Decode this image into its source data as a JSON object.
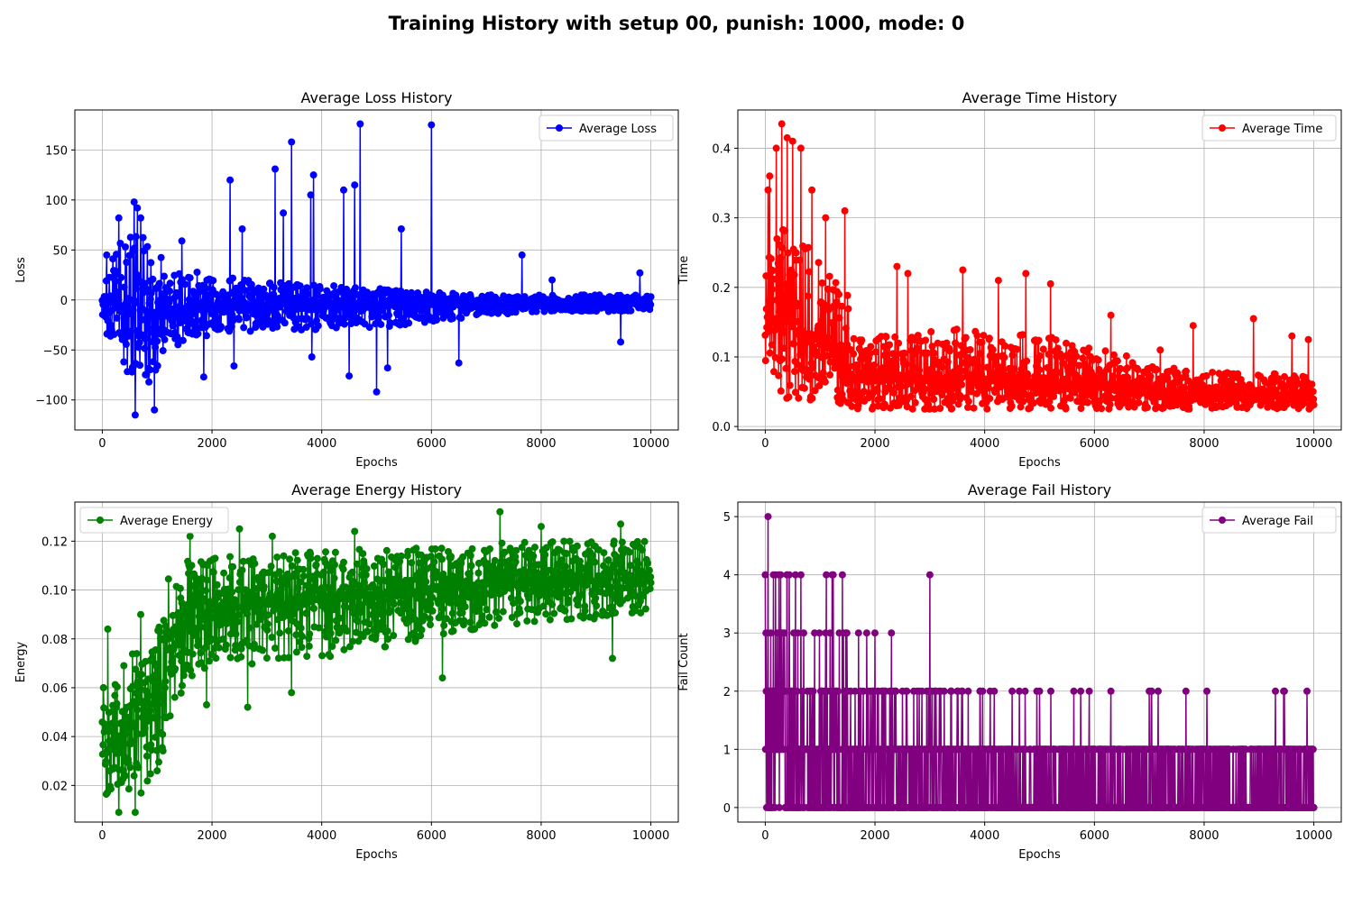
{
  "figure": {
    "suptitle": "Training History with setup 00, punish: 1000, mode: 0"
  },
  "chart_data": [
    {
      "type": "line",
      "title": "Average Loss History",
      "xlabel": "Epochs",
      "ylabel": "Loss",
      "xlim": [
        -500,
        10500
      ],
      "ylim": [
        -130,
        190
      ],
      "xticks": [
        0,
        2000,
        4000,
        6000,
        8000,
        10000
      ],
      "yticks": [
        -100,
        -50,
        0,
        50,
        100,
        150
      ],
      "ytick_labels": [
        "−100",
        "−50",
        "0",
        "50",
        "100",
        "150"
      ],
      "grid": true,
      "legend": "upper right",
      "series": [
        {
          "name": "Average Loss",
          "color": "#0000ff",
          "marker": "circle",
          "style": "noisy",
          "description": "dense noisy series, 10000 epochs, envelope narrows over training",
          "envelope": {
            "x": [
              0,
              300,
              600,
              1000,
              1500,
              2000,
              3000,
              4000,
              5000,
              6000,
              7000,
              8000,
              9000,
              10000
            ],
            "center": [
              0,
              -5,
              -10,
              -10,
              -8,
              -7,
              -6,
              -5,
              -5,
              -4,
              -4,
              -3,
              -3,
              -3
            ],
            "upper": [
              25,
              60,
              75,
              45,
              30,
              25,
              18,
              15,
              12,
              8,
              5,
              5,
              5,
              5
            ],
            "lower": [
              -25,
              -60,
              -85,
              -70,
              -40,
              -35,
              -30,
              -30,
              -28,
              -22,
              -15,
              -12,
              -12,
              -10
            ]
          },
          "peaks": [
            [
              80,
              45
            ],
            [
              300,
              82
            ],
            [
              580,
              98
            ],
            [
              640,
              92
            ],
            [
              700,
              82
            ],
            [
              950,
              53
            ],
            [
              1450,
              59
            ],
            [
              2330,
              120
            ],
            [
              2550,
              71
            ],
            [
              3150,
              131
            ],
            [
              3300,
              87
            ],
            [
              3450,
              158
            ],
            [
              3800,
              105
            ],
            [
              3850,
              125
            ],
            [
              4400,
              110
            ],
            [
              4600,
              115
            ],
            [
              4700,
              176
            ],
            [
              5450,
              71
            ],
            [
              6000,
              175
            ],
            [
              7650,
              45
            ],
            [
              8200,
              20
            ],
            [
              9800,
              27
            ],
            [
              600,
              -115
            ],
            [
              950,
              -110
            ],
            [
              850,
              -82
            ],
            [
              1850,
              -77
            ],
            [
              2400,
              -66
            ],
            [
              3820,
              -57
            ],
            [
              4500,
              -76
            ],
            [
              5000,
              -92
            ],
            [
              5200,
              -68
            ],
            [
              6500,
              -63
            ],
            [
              9450,
              -42
            ]
          ]
        }
      ]
    },
    {
      "type": "line",
      "title": "Average Time History",
      "xlabel": "Epochs",
      "ylabel": "Time",
      "xlim": [
        -500,
        10500
      ],
      "ylim": [
        -0.005,
        0.455
      ],
      "xticks": [
        0,
        2000,
        4000,
        6000,
        8000,
        10000
      ],
      "yticks": [
        0.0,
        0.1,
        0.2,
        0.3,
        0.4
      ],
      "ytick_labels": [
        "0.0",
        "0.1",
        "0.2",
        "0.3",
        "0.4"
      ],
      "grid": true,
      "legend": "upper right",
      "series": [
        {
          "name": "Average Time",
          "color": "#ff0000",
          "marker": "circle",
          "style": "noisy",
          "envelope": {
            "x": [
              0,
              100,
              500,
              1000,
              1500,
              1600,
              2000,
              3000,
              4000,
              5000,
              6000,
              7000,
              8000,
              9000,
              10000
            ],
            "center": [
              0.12,
              0.17,
              0.15,
              0.12,
              0.09,
              0.07,
              0.07,
              0.07,
              0.07,
              0.065,
              0.06,
              0.05,
              0.045,
              0.045,
              0.04
            ],
            "upper": [
              0.22,
              0.28,
              0.3,
              0.25,
              0.19,
              0.13,
              0.13,
              0.14,
              0.14,
              0.13,
              0.12,
              0.09,
              0.08,
              0.08,
              0.07
            ],
            "lower": [
              0.03,
              0.04,
              0.04,
              0.035,
              0.03,
              0.025,
              0.025,
              0.025,
              0.025,
              0.025,
              0.025,
              0.025,
              0.025,
              0.025,
              0.025
            ]
          },
          "peaks": [
            [
              50,
              0.34
            ],
            [
              80,
              0.36
            ],
            [
              300,
              0.435
            ],
            [
              200,
              0.4
            ],
            [
              400,
              0.415
            ],
            [
              500,
              0.41
            ],
            [
              650,
              0.4
            ],
            [
              850,
              0.34
            ],
            [
              1100,
              0.3
            ],
            [
              1450,
              0.31
            ],
            [
              2400,
              0.23
            ],
            [
              2600,
              0.22
            ],
            [
              3600,
              0.225
            ],
            [
              4250,
              0.21
            ],
            [
              4750,
              0.22
            ],
            [
              5200,
              0.205
            ],
            [
              6300,
              0.16
            ],
            [
              7200,
              0.11
            ],
            [
              7800,
              0.145
            ],
            [
              8900,
              0.155
            ],
            [
              9600,
              0.13
            ],
            [
              9900,
              0.125
            ]
          ]
        }
      ]
    },
    {
      "type": "line",
      "title": "Average Energy History",
      "xlabel": "Epochs",
      "ylabel": "Energy",
      "xlim": [
        -500,
        10500
      ],
      "ylim": [
        0.005,
        0.136
      ],
      "xticks": [
        0,
        2000,
        4000,
        6000,
        8000,
        10000
      ],
      "yticks": [
        0.02,
        0.04,
        0.06,
        0.08,
        0.1,
        0.12
      ],
      "ytick_labels": [
        "0.02",
        "0.04",
        "0.06",
        "0.08",
        "0.10",
        "0.12"
      ],
      "grid": true,
      "legend": "upper left",
      "series": [
        {
          "name": "Average Energy",
          "color": "#008000",
          "marker": "circle",
          "style": "noisy",
          "envelope": {
            "x": [
              0,
              300,
              600,
              900,
              1100,
              1200,
              1500,
              2000,
              3000,
              4000,
              5000,
              6000,
              7000,
              8000,
              9000,
              10000
            ],
            "center": [
              0.035,
              0.04,
              0.045,
              0.05,
              0.06,
              0.08,
              0.09,
              0.092,
              0.094,
              0.096,
              0.098,
              0.1,
              0.102,
              0.103,
              0.104,
              0.105
            ],
            "upper": [
              0.06,
              0.07,
              0.075,
              0.08,
              0.09,
              0.105,
              0.112,
              0.114,
              0.115,
              0.116,
              0.117,
              0.118,
              0.119,
              0.12,
              0.12,
              0.12
            ],
            "lower": [
              0.015,
              0.015,
              0.015,
              0.02,
              0.03,
              0.045,
              0.06,
              0.068,
              0.07,
              0.072,
              0.076,
              0.08,
              0.085,
              0.087,
              0.088,
              0.09
            ]
          },
          "peaks": [
            [
              100,
              0.084
            ],
            [
              300,
              0.092
            ],
            [
              700,
              0.09
            ],
            [
              1600,
              0.122
            ],
            [
              1900,
              0.123
            ],
            [
              2500,
              0.125
            ],
            [
              3100,
              0.122
            ],
            [
              4600,
              0.124
            ],
            [
              7250,
              0.132
            ],
            [
              8000,
              0.126
            ],
            [
              9450,
              0.127
            ],
            [
              300,
              0.009
            ],
            [
              600,
              0.009
            ],
            [
              2650,
              0.052
            ],
            [
              1900,
              0.053
            ],
            [
              3450,
              0.058
            ],
            [
              6200,
              0.064
            ],
            [
              9300,
              0.072
            ]
          ]
        }
      ]
    },
    {
      "type": "line",
      "title": "Average Fail History",
      "xlabel": "Epochs",
      "ylabel": "Fail Count",
      "xlim": [
        -500,
        10500
      ],
      "ylim": [
        -0.25,
        5.25
      ],
      "xticks": [
        0,
        2000,
        4000,
        6000,
        8000,
        10000
      ],
      "yticks": [
        0,
        1,
        2,
        3,
        4,
        5
      ],
      "ytick_labels": [
        "0",
        "1",
        "2",
        "3",
        "4",
        "5"
      ],
      "grid": true,
      "legend": "upper right",
      "series": [
        {
          "name": "Average Fail",
          "color": "#800080",
          "marker": "circle",
          "style": "discrete",
          "levels": [
            0,
            1,
            2,
            3,
            4,
            5
          ],
          "spikes": [
            [
              50,
              5
            ],
            [
              0,
              4
            ],
            [
              150,
              4
            ],
            [
              250,
              4
            ],
            [
              400,
              4
            ],
            [
              550,
              4
            ],
            [
              650,
              4
            ],
            [
              3000,
              4
            ],
            [
              100,
              3
            ],
            [
              350,
              3
            ],
            [
              700,
              3
            ],
            [
              900,
              3
            ],
            [
              1100,
              3
            ],
            [
              1350,
              3
            ],
            [
              1700,
              3
            ],
            [
              1850,
              3
            ],
            [
              2000,
              3
            ],
            [
              2300,
              3
            ],
            [
              1500,
              2
            ],
            [
              2500,
              2
            ],
            [
              3200,
              2
            ],
            [
              3700,
              2
            ],
            [
              4100,
              2
            ],
            [
              4500,
              2
            ],
            [
              5000,
              2
            ],
            [
              5750,
              2
            ],
            [
              6300,
              2
            ],
            [
              8050,
              2
            ],
            [
              9450,
              2
            ]
          ]
        }
      ]
    }
  ]
}
